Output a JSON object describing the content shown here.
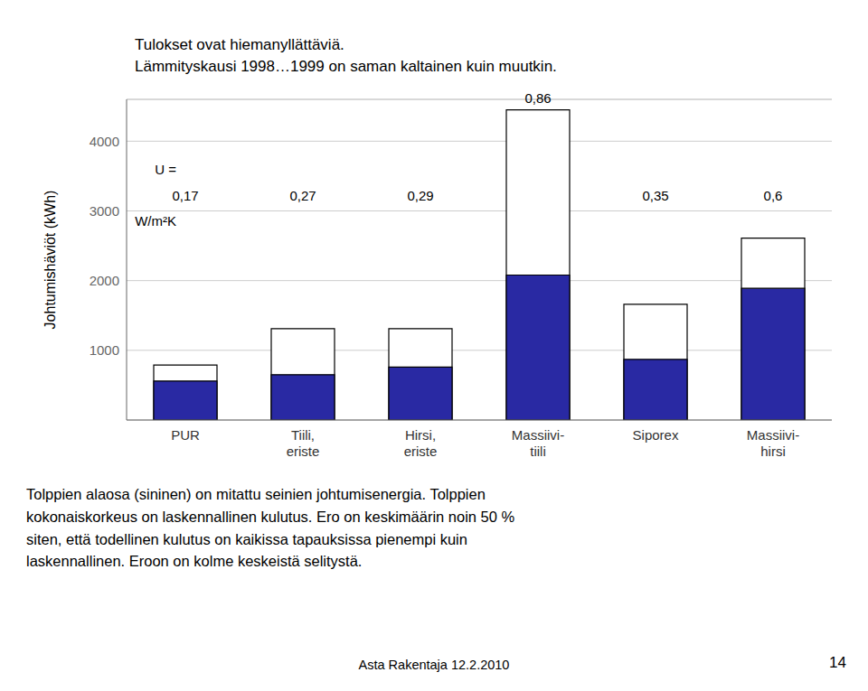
{
  "chart_data": {
    "type": "bar",
    "title": "Tulokset ovat hiemanyllättäviä.",
    "subtitle": "Lämmityskausi 1998…1999 on saman kaltainen kuin muutkin.",
    "categories": [
      "PUR",
      "Tiili,\neriste",
      "Hirsi,\neriste",
      "Massiivi-\ntiili",
      "Siporex",
      "Massiivi-\nhirsi"
    ],
    "series": [
      {
        "color": "#ffffff",
        "values": [
          790,
          1310,
          1310,
          4450,
          1660,
          2610
        ]
      },
      {
        "color": "#2929a3",
        "values": [
          560,
          650,
          760,
          2080,
          870,
          1890
        ]
      }
    ],
    "stacked": false,
    "ylabel": "Johtumishäviöt (kWh)",
    "ylim": [
      0,
      4600
    ],
    "yticks": [
      1000,
      2000,
      3000,
      4000
    ],
    "grid": true,
    "u_label": "U =",
    "u_values": [
      "0,17",
      "0,27",
      "0,29",
      "0,86",
      "0,35",
      "0,6"
    ],
    "u_unit": "W/m²K",
    "annotations": [
      "Tolppien alaosa (sininen) on mitattu seinien johtumisenergia. Tolppien\nkokonaiskorkeus on laskennallinen kulutus. Ero on keskimäärin noin 50 %\nsiten, että todellinen kulutus on kaikissa tapauksissa pienempi kuin\nlaskennallinen. Eroon on kolme keskeistä selitystä.",
      "Asta Rakentaja 12.2.2010",
      "14"
    ]
  }
}
